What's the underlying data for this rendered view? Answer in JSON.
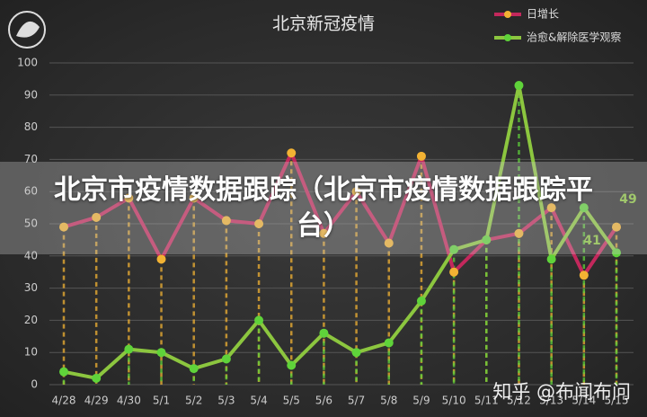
{
  "chart_data": {
    "type": "line",
    "title": "北京新冠疫情",
    "categories": [
      "4/28",
      "4/29",
      "4/30",
      "5/1",
      "5/2",
      "5/3",
      "5/4",
      "5/5",
      "5/6",
      "5/7",
      "5/8",
      "5/9",
      "5/10",
      "5/11",
      "5/12",
      "5/13",
      "5/14",
      "5/15"
    ],
    "series": [
      {
        "name": "日增长",
        "color": "#c3285c",
        "marker_color": "#f2b233",
        "values": [
          49,
          52,
          58,
          39,
          58,
          51,
          50,
          72,
          47,
          60,
          44,
          71,
          35,
          45,
          47,
          55,
          34,
          49
        ]
      },
      {
        "name": "治愈&解除医学观察",
        "color": "#8cc63f",
        "marker_color": "#5fd33a",
        "values": [
          4,
          2,
          11,
          10,
          5,
          8,
          20,
          6,
          16,
          10,
          13,
          26,
          42,
          45,
          93,
          39,
          55,
          41
        ]
      }
    ],
    "annotations": [
      "49",
      "41"
    ],
    "ylim": [
      0,
      100
    ],
    "yticks": [
      0,
      10,
      20,
      30,
      40,
      50,
      60,
      70,
      80,
      90,
      100
    ],
    "grid": true,
    "legend": "top-right"
  },
  "overlay_title": "北京市疫情数据跟踪（北京市疫情数据跟踪平台）",
  "watermark": "知乎 @布闻布问"
}
